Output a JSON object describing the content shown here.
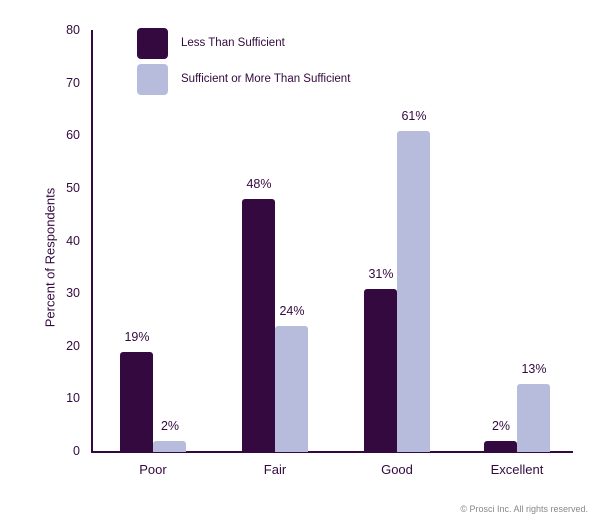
{
  "chart_data": {
    "type": "bar",
    "title": "",
    "xlabel": "",
    "ylabel": "Percent of Respondents",
    "ylim": [
      0,
      80
    ],
    "yticks": [
      0,
      10,
      20,
      30,
      40,
      50,
      60,
      70,
      80
    ],
    "grid": false,
    "legend_position": "top-left",
    "categories": [
      "Poor",
      "Fair",
      "Good",
      "Excellent"
    ],
    "series": [
      {
        "name": "Less Than Sufficient",
        "color": "#33093f",
        "values": [
          19,
          48,
          31,
          2
        ],
        "labels": [
          "19%",
          "48%",
          "31%",
          "2%"
        ]
      },
      {
        "name": "Sufficient or More Than Sufficient",
        "color": "#b7bcdc",
        "values": [
          2,
          24,
          61,
          13
        ],
        "labels": [
          "2%",
          "24%",
          "61%",
          "13%"
        ]
      }
    ]
  },
  "footer": {
    "copyright": "© Prosci Inc. All rights reserved."
  },
  "colors": {
    "text": "#33093f",
    "dark": "#33093f",
    "light": "#b7bcdc"
  }
}
